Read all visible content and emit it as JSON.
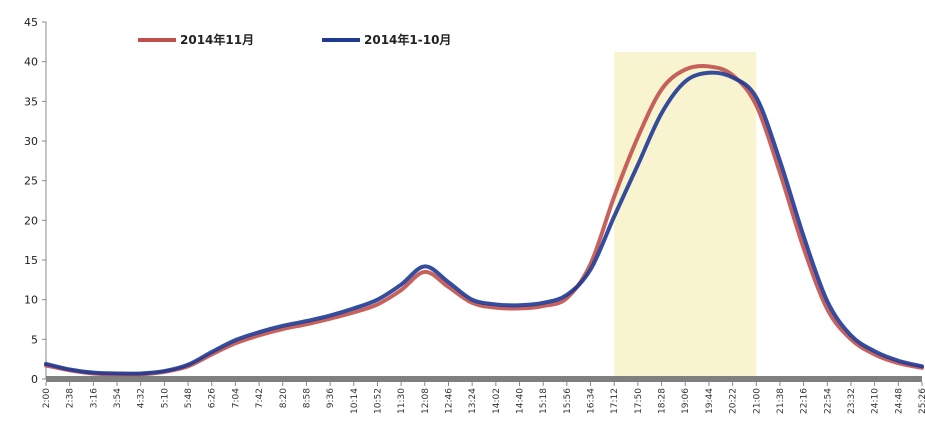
{
  "chart_data": {
    "type": "line",
    "ylim": [
      0,
      45
    ],
    "yticks": [
      0,
      5,
      10,
      15,
      20,
      25,
      30,
      35,
      40,
      45
    ],
    "xlabels": [
      "2:00",
      "2:38",
      "3:16",
      "3:54",
      "4:32",
      "5:10",
      "5:48",
      "6:26",
      "7:04",
      "7:42",
      "8:20",
      "8:58",
      "9:36",
      "10:14",
      "10:52",
      "11:30",
      "12:08",
      "12:46",
      "13:24",
      "14:02",
      "14:40",
      "15:18",
      "15:56",
      "16:34",
      "17:12",
      "17:50",
      "18:28",
      "19:06",
      "19:44",
      "20:22",
      "21:00",
      "21:38",
      "22:16",
      "22:54",
      "23:32",
      "24:10",
      "24:48",
      "25:26"
    ],
    "highlight_range": [
      "17:12",
      "21:00"
    ],
    "highlight_color": "#f8f4d0",
    "legend_position": "top-left",
    "series": [
      {
        "name": "2014年11月",
        "color": "#c0504d",
        "values": [
          1.7,
          1.1,
          0.7,
          0.6,
          0.6,
          0.9,
          1.6,
          3.1,
          4.5,
          5.5,
          6.3,
          6.9,
          7.6,
          8.4,
          9.4,
          11.2,
          13.5,
          11.6,
          9.6,
          9.0,
          8.9,
          9.2,
          10.2,
          14.5,
          23.0,
          30.5,
          36.5,
          39.0,
          39.4,
          38.3,
          34.5,
          26.0,
          16.5,
          8.8,
          5.0,
          3.1,
          2.0,
          1.4
        ]
      },
      {
        "name": "2014年1-10月",
        "color": "#1f3a93",
        "values": [
          1.9,
          1.2,
          0.8,
          0.7,
          0.7,
          1.0,
          1.8,
          3.4,
          4.9,
          5.9,
          6.7,
          7.3,
          8.0,
          8.9,
          10.0,
          11.9,
          14.2,
          12.2,
          10.0,
          9.4,
          9.3,
          9.6,
          10.6,
          13.8,
          20.5,
          27.0,
          33.5,
          37.5,
          38.6,
          38.0,
          35.5,
          27.5,
          18.0,
          9.8,
          5.5,
          3.5,
          2.3,
          1.6
        ]
      }
    ]
  }
}
